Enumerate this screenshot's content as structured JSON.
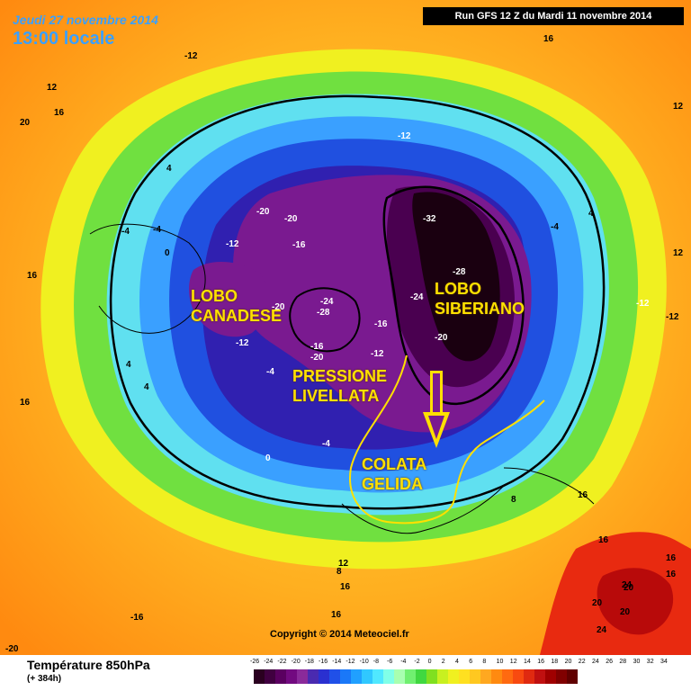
{
  "header": {
    "date": "Jeudi 27 novembre 2014",
    "time": "13:00 locale",
    "run": "Run GFS 12 Z du Mardi 11 novembre 2014"
  },
  "footer": {
    "title": "Température 850hPa",
    "subtitle": "(+ 384h)",
    "copyright": "Copyright © 2014 Meteociel.fr"
  },
  "colorbar": {
    "ticks": [
      "-26",
      "-24",
      "-22",
      "-20",
      "-18",
      "-16",
      "-14",
      "-12",
      "-10",
      "-8",
      "-6",
      "-4",
      "-2",
      "0",
      "2",
      "4",
      "6",
      "8",
      "10",
      "12",
      "14",
      "16",
      "18",
      "20",
      "22",
      "24",
      "26",
      "28",
      "30",
      "32",
      "34"
    ],
    "colors": [
      "#2a0020",
      "#400040",
      "#5a0060",
      "#720a80",
      "#8a2a9a",
      "#4a2ab0",
      "#2a30d0",
      "#2050e8",
      "#1a78f8",
      "#20a0ff",
      "#30c8ff",
      "#50e8ff",
      "#80ffe8",
      "#a8ffb0",
      "#70f070",
      "#40d840",
      "#80e020",
      "#c8f020",
      "#f0f020",
      "#ffe020",
      "#ffc820",
      "#ffa820",
      "#ff8a10",
      "#ff6a10",
      "#f84a10",
      "#e02a10",
      "#c01010",
      "#a00000",
      "#800000",
      "#600000"
    ]
  },
  "annotations": {
    "canada": [
      "LOBO",
      "CANADESE"
    ],
    "siberia": [
      "LOBO",
      "SIBERIANO"
    ],
    "pressure": [
      "PRESSIONE",
      "LIVELLATA"
    ],
    "cold": [
      "COLATA",
      "GELIDA"
    ]
  },
  "isotherm_labels": [
    {
      "t": "-12",
      "white": false
    },
    {
      "t": "16",
      "white": false
    },
    {
      "t": "12",
      "white": false
    },
    {
      "t": "16",
      "white": false
    },
    {
      "t": "20",
      "white": false
    },
    {
      "t": "4",
      "white": false
    },
    {
      "t": "-4",
      "white": false
    },
    {
      "t": "0",
      "white": false
    },
    {
      "t": "-4",
      "white": false
    },
    {
      "t": "16",
      "white": false
    },
    {
      "t": "4",
      "white": false
    },
    {
      "t": "4",
      "white": false
    },
    {
      "t": "16",
      "white": false
    },
    {
      "t": "-20",
      "white": true
    },
    {
      "t": "-20",
      "white": true
    },
    {
      "t": "-12",
      "white": true
    },
    {
      "t": "-16",
      "white": true
    },
    {
      "t": "-12",
      "white": true
    },
    {
      "t": "-32",
      "white": true
    },
    {
      "t": "-28",
      "white": true
    },
    {
      "t": "-24",
      "white": true
    },
    {
      "t": "-20",
      "white": true
    },
    {
      "t": "-24",
      "white": true
    },
    {
      "t": "-28",
      "white": true
    },
    {
      "t": "-20",
      "white": true
    },
    {
      "t": "-16",
      "white": true
    },
    {
      "t": "-12",
      "white": true
    },
    {
      "t": "-16",
      "white": true
    },
    {
      "t": "-20",
      "white": true
    },
    {
      "t": "-12",
      "white": true
    },
    {
      "t": "-4",
      "white": true
    },
    {
      "t": "-4",
      "white": true
    },
    {
      "t": "0",
      "white": true
    },
    {
      "t": "-12",
      "white": true
    },
    {
      "t": "-4",
      "white": false
    },
    {
      "t": "4",
      "white": false
    },
    {
      "t": "-12",
      "white": false
    },
    {
      "t": "12",
      "white": false
    },
    {
      "t": "12",
      "white": false
    },
    {
      "t": "8",
      "white": false
    },
    {
      "t": "16",
      "white": false
    },
    {
      "t": "16",
      "white": false
    },
    {
      "t": "16",
      "white": false
    },
    {
      "t": "8",
      "white": false
    },
    {
      "t": "12",
      "white": false
    },
    {
      "t": "16",
      "white": false
    },
    {
      "t": "16",
      "white": false
    },
    {
      "t": "-16",
      "white": false
    },
    {
      "t": "20",
      "white": false
    },
    {
      "t": "24",
      "white": false
    },
    {
      "t": "20",
      "white": false
    },
    {
      "t": "20",
      "white": false
    },
    {
      "t": "24",
      "white": false
    },
    {
      "t": "16",
      "white": false
    },
    {
      "t": "-20",
      "white": false
    }
  ]
}
